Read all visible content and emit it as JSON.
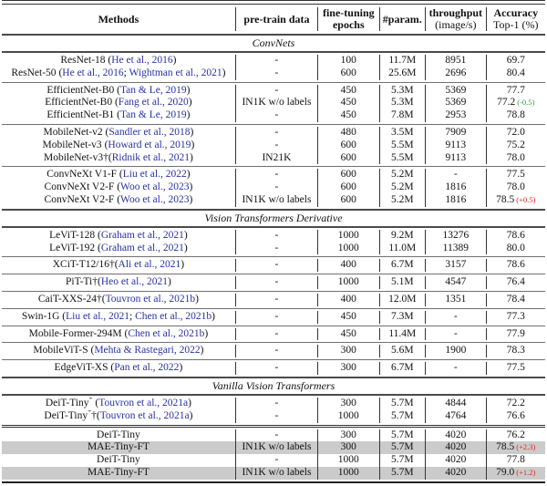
{
  "colors": {
    "citation_link": "#2832a0",
    "delta_positive": "#e3231c",
    "delta_negative": "#27a035",
    "highlight_row": "#cbcbcb"
  },
  "table": {
    "columns": [
      {
        "line1": "Methods",
        "slug": "methods"
      },
      {
        "line1": "pre-train data",
        "slug": "pretrain-data"
      },
      {
        "line1": "fine-tuning",
        "line2": "epochs",
        "line2_bold": true,
        "slug": "finetuning-epochs"
      },
      {
        "line1": "#param.",
        "slug": "params"
      },
      {
        "line1": "throughput",
        "line2": "(image/s)",
        "line2_bold": false,
        "slug": "throughput"
      },
      {
        "line1": "Accuracy",
        "line2": "Top-1 (%)",
        "line2_bold": false,
        "slug": "accuracy-top1"
      }
    ],
    "sections": [
      {
        "title": "ConvNets",
        "groups": [
          {
            "rows": [
              {
                "method": "ResNet-18",
                "gap": true,
                "cites": [
                  "He et al., 2016"
                ],
                "pretrain": "-",
                "epochs": "100",
                "params": "11.7M",
                "throughput": "8951",
                "accuracy": "69.7"
              },
              {
                "method": "ResNet-50",
                "gap": true,
                "cites": [
                  "He et al., 2016",
                  "Wightman et al., 2021"
                ],
                "pretrain": "-",
                "epochs": "600",
                "params": "25.6M",
                "throughput": "2696",
                "accuracy": "80.4"
              }
            ]
          },
          {
            "rows": [
              {
                "method": "EfficientNet-B0",
                "gap": true,
                "cites": [
                  "Tan & Le, 2019"
                ],
                "pretrain": "-",
                "epochs": "450",
                "params": "5.3M",
                "throughput": "5369",
                "accuracy": "77.7"
              },
              {
                "method": "EfficientNet-B0",
                "gap": true,
                "cites": [
                  "Fang et al., 2020"
                ],
                "pretrain": "IN1K w/o labels",
                "epochs": "450",
                "params": "5.3M",
                "throughput": "5369",
                "accuracy": "77.2",
                "delta": {
                  "text": "(-0.5)",
                  "trend": "down"
                }
              },
              {
                "method": "EfficientNet-B1",
                "gap": true,
                "cites": [
                  "Tan & Le, 2019"
                ],
                "pretrain": "-",
                "epochs": "450",
                "params": "7.8M",
                "throughput": "2953",
                "accuracy": "78.8"
              }
            ]
          },
          {
            "rows": [
              {
                "method": "MobileNet-v2",
                "gap": true,
                "cites": [
                  "Sandler et al., 2018"
                ],
                "pretrain": "-",
                "epochs": "480",
                "params": "3.5M",
                "throughput": "7909",
                "accuracy": "72.0"
              },
              {
                "method": "MobileNet-v3",
                "gap": true,
                "cites": [
                  "Howard et al., 2019"
                ],
                "pretrain": "-",
                "epochs": "600",
                "params": "5.5M",
                "throughput": "9113",
                "accuracy": "75.2"
              },
              {
                "method": "MobileNet-v3†",
                "gap": false,
                "cites": [
                  "Ridnik et al., 2021"
                ],
                "pretrain": "IN21K",
                "epochs": "600",
                "params": "5.5M",
                "throughput": "9113",
                "accuracy": "78.0"
              }
            ]
          },
          {
            "rows": [
              {
                "method": "ConvNeXt V1-F",
                "gap": true,
                "cites": [
                  "Liu et al., 2022"
                ],
                "pretrain": "-",
                "epochs": "600",
                "params": "5.2M",
                "throughput": "-",
                "accuracy": "77.5"
              },
              {
                "method": "ConvNeXt V2-F",
                "gap": true,
                "cites": [
                  "Woo et al., 2023"
                ],
                "pretrain": "-",
                "epochs": "600",
                "params": "5.2M",
                "throughput": "1816",
                "accuracy": "78.0"
              },
              {
                "method": "ConvNeXt V2-F",
                "gap": true,
                "cites": [
                  "Woo et al., 2023"
                ],
                "pretrain": "IN1K w/o labels",
                "epochs": "600",
                "params": "5.2M",
                "throughput": "1816",
                "accuracy": "78.5",
                "delta": {
                  "text": "(+0.5)",
                  "trend": "up"
                }
              }
            ]
          }
        ]
      },
      {
        "title": "Vision Transformers Derivative",
        "groups": [
          {
            "rows": [
              {
                "method": "LeViT-128",
                "gap": true,
                "cites": [
                  "Graham et al., 2021"
                ],
                "pretrain": "-",
                "epochs": "1000",
                "params": "9.2M",
                "throughput": "13276",
                "accuracy": "78.6"
              },
              {
                "method": "LeViT-192",
                "gap": true,
                "cites": [
                  "Graham et al., 2021"
                ],
                "pretrain": "-",
                "epochs": "1000",
                "params": "11.0M",
                "throughput": "11389",
                "accuracy": "80.0"
              }
            ]
          },
          {
            "rows": [
              {
                "method": "XCiT-T12/16†",
                "gap": false,
                "cites": [
                  "Ali et al., 2021"
                ],
                "pretrain": "-",
                "epochs": "400",
                "params": "6.7M",
                "throughput": "3157",
                "accuracy": "78.6"
              }
            ]
          },
          {
            "rows": [
              {
                "method": "PiT-Ti†",
                "gap": false,
                "cites": [
                  "Heo et al., 2021"
                ],
                "pretrain": "-",
                "epochs": "1000",
                "params": "5.1M",
                "throughput": "4547",
                "accuracy": "76.4"
              }
            ]
          },
          {
            "rows": [
              {
                "method": "CaiT-XXS-24†",
                "gap": false,
                "cites": [
                  "Touvron et al., 2021b"
                ],
                "pretrain": "-",
                "epochs": "400",
                "params": "12.0M",
                "throughput": "1351",
                "accuracy": "78.4"
              }
            ]
          },
          {
            "rows": [
              {
                "method": "Swin-1G",
                "gap": true,
                "cites": [
                  "Liu et al., 2021",
                  "Chen et al., 2021b"
                ],
                "pretrain": "-",
                "epochs": "450",
                "params": "7.3M",
                "throughput": "-",
                "accuracy": "77.3"
              }
            ]
          },
          {
            "rows": [
              {
                "method": "Mobile-Former-294M",
                "gap": true,
                "cites": [
                  "Chen et al., 2021b"
                ],
                "pretrain": "-",
                "epochs": "450",
                "params": "11.4M",
                "throughput": "-",
                "accuracy": "77.9"
              }
            ]
          },
          {
            "rows": [
              {
                "method": "MobileViT-S",
                "gap": true,
                "cites": [
                  "Mehta & Rastegari, 2022"
                ],
                "pretrain": "-",
                "epochs": "300",
                "params": "5.6M",
                "throughput": "1900",
                "accuracy": "78.3"
              }
            ]
          },
          {
            "rows": [
              {
                "method": "EdgeViT-XS",
                "gap": true,
                "cites": [
                  "Pan et al., 2022"
                ],
                "pretrain": "-",
                "epochs": "300",
                "params": "6.7M",
                "throughput": "-",
                "accuracy": "77.5"
              }
            ]
          }
        ]
      },
      {
        "title": "Vanilla Vision Transformers",
        "groups": [
          {
            "rows": [
              {
                "method": "DeiT-Tiny*",
                "gap": true,
                "cites": [
                  "Touvron et al., 2021a"
                ],
                "pretrain": "-",
                "epochs": "300",
                "params": "5.7M",
                "throughput": "4844",
                "accuracy": "72.2"
              },
              {
                "method": "DeiT-Tiny*†",
                "gap": false,
                "cites": [
                  "Touvron et al., 2021a"
                ],
                "pretrain": "-",
                "epochs": "1000",
                "params": "5.7M",
                "throughput": "4764",
                "accuracy": "76.6"
              }
            ]
          },
          {
            "border": "double",
            "rows": [
              {
                "method": "DeiT-Tiny",
                "gap": true,
                "cites": [],
                "pretrain": "-",
                "epochs": "300",
                "params": "5.7M",
                "throughput": "4020",
                "accuracy": "76.2"
              },
              {
                "method": "MAE-Tiny-FT",
                "gap": true,
                "cites": [],
                "pretrain": "IN1K w/o labels",
                "epochs": "300",
                "params": "5.7M",
                "throughput": "4020",
                "accuracy": "78.5",
                "delta": {
                  "text": "(+2.3)",
                  "trend": "up"
                },
                "highlight": true
              },
              {
                "method": "DeiT-Tiny",
                "gap": true,
                "cites": [],
                "pretrain": "-",
                "epochs": "1000",
                "params": "5.7M",
                "throughput": "4020",
                "accuracy": "77.8"
              },
              {
                "method": "MAE-Tiny-FT",
                "gap": true,
                "cites": [],
                "pretrain": "IN1K w/o labels",
                "epochs": "1000",
                "params": "5.7M",
                "throughput": "4020",
                "accuracy": "79.0",
                "delta": {
                  "text": "(+1.2)",
                  "trend": "up"
                },
                "highlight": true
              }
            ]
          }
        ]
      }
    ]
  }
}
